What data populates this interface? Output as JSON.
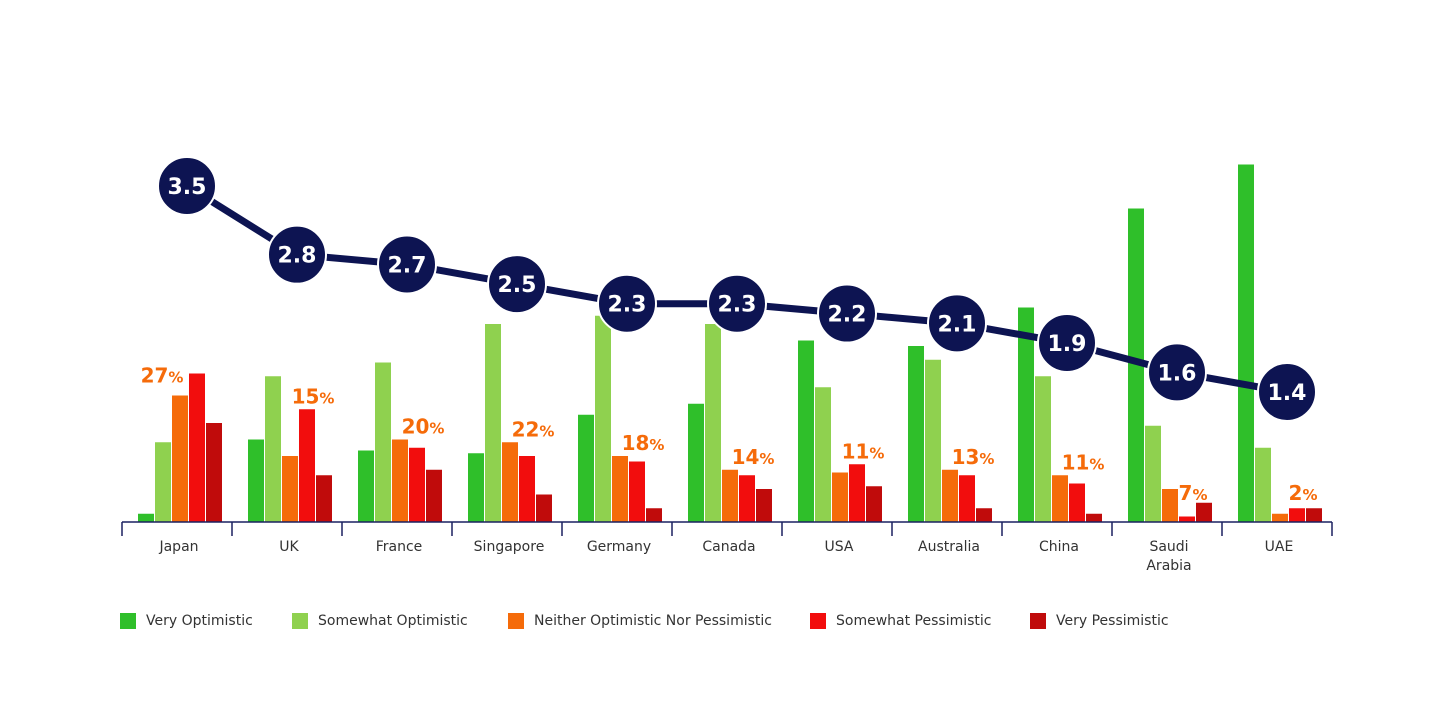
{
  "chart_data": {
    "type": "bar",
    "categories": [
      "Japan",
      "UK",
      "France",
      "Singapore",
      "Germany",
      "Canada",
      "USA",
      "Australia",
      "China",
      "Saudi Arabia",
      "UAE"
    ],
    "bar_series": [
      {
        "name": "Very Optimistic",
        "color": "#2fbf2a",
        "values": [
          1.5,
          15,
          13,
          12.5,
          19.5,
          21.5,
          33,
          32,
          39,
          57,
          65
        ]
      },
      {
        "name": "Somewhat Optimistic",
        "color": "#8fd14f",
        "values": [
          14.5,
          26.5,
          29,
          36,
          37.5,
          36,
          24.5,
          29.5,
          26.5,
          17.5,
          13.5
        ]
      },
      {
        "name": "Neither Optimistic Nor Pessimistic",
        "color": "#f56b0a",
        "values": [
          23,
          12,
          15,
          14.5,
          12,
          9.5,
          9,
          9.5,
          8.5,
          6,
          1.5
        ]
      },
      {
        "name": "Somewhat Pessimistic",
        "color": "#f20d0d",
        "values": [
          27,
          20.5,
          13.5,
          12,
          11,
          8.5,
          10.5,
          8.5,
          7,
          1,
          2.5
        ]
      },
      {
        "name": "Very Pessimistic",
        "color": "#c00b0b",
        "values": [
          18,
          8.5,
          9.5,
          5,
          2.5,
          6,
          6.5,
          2.5,
          1.5,
          3.5,
          2.5
        ]
      }
    ],
    "pct_labels": [
      "27",
      "15",
      "20",
      "22",
      "18",
      "14",
      "11",
      "13",
      "11",
      "7",
      "2"
    ],
    "pct_label_color": "#f56b0a",
    "pct_sign": "%",
    "line_series": {
      "values": [
        3.5,
        2.8,
        2.7,
        2.5,
        2.3,
        2.3,
        2.2,
        2.1,
        1.9,
        1.6,
        1.4
      ],
      "labels": [
        "3.5",
        "2.8",
        "2.7",
        "2.5",
        "2.3",
        "2.3",
        "2.2",
        "2.1",
        "1.9",
        "1.6",
        "1.4"
      ],
      "color": "#0d1452"
    },
    "axis_color": "#1a2060",
    "legend_position": "bottom",
    "grid": false
  }
}
